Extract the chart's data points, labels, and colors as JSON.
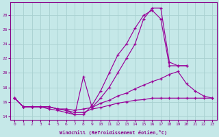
{
  "xlabel": "Windchill (Refroidissement éolien,°C)",
  "bg_color": "#c5e8e8",
  "grid_color": "#a8d0d0",
  "line_color": "#990099",
  "xlim": [
    -0.5,
    23.5
  ],
  "ylim": [
    13.5,
    29.8
  ],
  "yticks": [
    14,
    16,
    18,
    20,
    22,
    24,
    26,
    28
  ],
  "xticks": [
    0,
    1,
    2,
    3,
    4,
    5,
    6,
    7,
    8,
    9,
    10,
    11,
    12,
    13,
    14,
    15,
    16,
    17,
    18,
    19,
    20,
    21,
    22,
    23
  ],
  "lines": [
    {
      "x": [
        0,
        1,
        2,
        3,
        4,
        5,
        6,
        7,
        8,
        9,
        10,
        11,
        12,
        13,
        14,
        15,
        16,
        17,
        18,
        19,
        20
      ],
      "y": [
        16.5,
        15.3,
        15.3,
        15.3,
        15.3,
        15.0,
        14.8,
        14.2,
        14.2,
        15.5,
        17.5,
        20.0,
        22.5,
        24.0,
        26.2,
        28.0,
        28.7,
        27.5,
        21.0,
        21.0,
        21.0
      ]
    },
    {
      "x": [
        0,
        1,
        2,
        3,
        4,
        5,
        6,
        7,
        8,
        9,
        10,
        11,
        12,
        13,
        14,
        15,
        16,
        17,
        18,
        19,
        20
      ],
      "y": [
        16.5,
        15.3,
        15.3,
        15.3,
        15.0,
        14.8,
        14.5,
        14.2,
        19.5,
        15.2,
        16.5,
        18.0,
        20.0,
        22.0,
        24.0,
        27.5,
        29.0,
        29.0,
        21.5,
        21.0,
        21.0
      ]
    },
    {
      "x": [
        0,
        1,
        2,
        3,
        4,
        5,
        6,
        7,
        8,
        9,
        10,
        11,
        12,
        13,
        14,
        15,
        16,
        17,
        18,
        19,
        20,
        21,
        22,
        23
      ],
      "y": [
        16.5,
        15.3,
        15.3,
        15.3,
        15.3,
        15.0,
        15.0,
        14.8,
        15.0,
        15.2,
        15.8,
        16.2,
        16.8,
        17.2,
        17.8,
        18.3,
        18.8,
        19.2,
        19.8,
        20.2,
        18.5,
        17.5,
        16.8,
        16.5
      ]
    },
    {
      "x": [
        0,
        1,
        2,
        3,
        4,
        5,
        6,
        7,
        8,
        9,
        10,
        11,
        12,
        13,
        14,
        15,
        16,
        17,
        18,
        19,
        20,
        21,
        22,
        23
      ],
      "y": [
        16.5,
        15.3,
        15.3,
        15.3,
        15.3,
        15.0,
        14.8,
        14.5,
        14.5,
        15.0,
        15.2,
        15.5,
        15.8,
        16.0,
        16.2,
        16.3,
        16.5,
        16.5,
        16.5,
        16.5,
        16.5,
        16.5,
        16.5,
        16.5
      ]
    }
  ]
}
